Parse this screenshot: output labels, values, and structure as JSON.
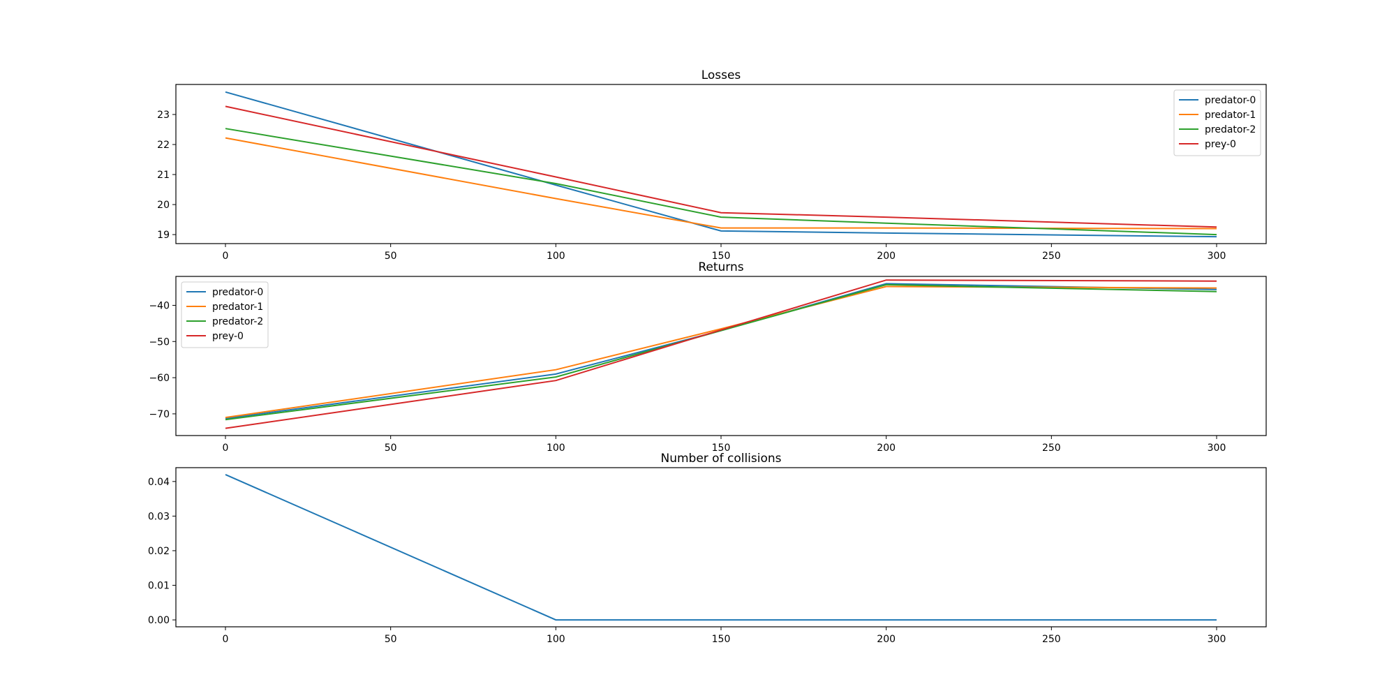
{
  "chart_data": [
    {
      "type": "line",
      "title": "Losses",
      "xlabel": "",
      "ylabel": "",
      "xlim": [
        -15,
        315
      ],
      "ylim": [
        18.7,
        24.0
      ],
      "xticks": [
        0,
        50,
        100,
        150,
        200,
        250,
        300
      ],
      "yticks": [
        19,
        20,
        21,
        22,
        23
      ],
      "legend": "top-right",
      "x": [
        0,
        100,
        150,
        200,
        300
      ],
      "series": [
        {
          "name": "predator-0",
          "color": "#1f77b4",
          "values": [
            23.75,
            20.65,
            19.12,
            19.05,
            18.93
          ]
        },
        {
          "name": "predator-1",
          "color": "#ff7f0e",
          "values": [
            22.22,
            20.2,
            19.22,
            19.22,
            19.2
          ]
        },
        {
          "name": "predator-2",
          "color": "#2ca02c",
          "values": [
            22.53,
            20.7,
            19.58,
            19.38,
            19.0
          ]
        },
        {
          "name": "prey-0",
          "color": "#d62728",
          "values": [
            23.27,
            20.92,
            19.73,
            19.58,
            19.25
          ]
        }
      ]
    },
    {
      "type": "line",
      "title": "Returns",
      "xlabel": "",
      "ylabel": "",
      "xlim": [
        -15,
        315
      ],
      "ylim": [
        -76,
        -32
      ],
      "xticks": [
        0,
        50,
        100,
        150,
        200,
        250,
        300
      ],
      "yticks": [
        -70,
        -60,
        -50,
        -40
      ],
      "ytick_labels": [
        "−70",
        "−60",
        "−50",
        "−40"
      ],
      "legend": "top-left",
      "x": [
        0,
        100,
        150,
        200,
        300
      ],
      "series": [
        {
          "name": "predator-0",
          "color": "#1f77b4",
          "values": [
            -71.3,
            -59.0,
            -47.0,
            -34.0,
            -35.6
          ]
        },
        {
          "name": "predator-1",
          "color": "#ff7f0e",
          "values": [
            -71.0,
            -57.8,
            -46.5,
            -34.8,
            -35.2
          ]
        },
        {
          "name": "predator-2",
          "color": "#2ca02c",
          "values": [
            -71.6,
            -59.8,
            -47.0,
            -34.3,
            -36.2
          ]
        },
        {
          "name": "prey-0",
          "color": "#d62728",
          "values": [
            -74.0,
            -60.8,
            -46.8,
            -33.0,
            -33.3
          ]
        }
      ]
    },
    {
      "type": "line",
      "title": "Number of collisions",
      "xlabel": "",
      "ylabel": "",
      "xlim": [
        -15,
        315
      ],
      "ylim": [
        -0.002,
        0.044
      ],
      "xticks": [
        0,
        50,
        100,
        150,
        200,
        250,
        300
      ],
      "yticks": [
        0.0,
        0.01,
        0.02,
        0.03,
        0.04
      ],
      "ytick_labels": [
        "0.00",
        "0.01",
        "0.02",
        "0.03",
        "0.04"
      ],
      "legend": "none",
      "x": [
        0,
        100,
        150,
        200,
        300
      ],
      "series": [
        {
          "color": "#1f77b4",
          "values": [
            0.042,
            0.0,
            0.0,
            0.0,
            0.0
          ]
        }
      ]
    }
  ]
}
